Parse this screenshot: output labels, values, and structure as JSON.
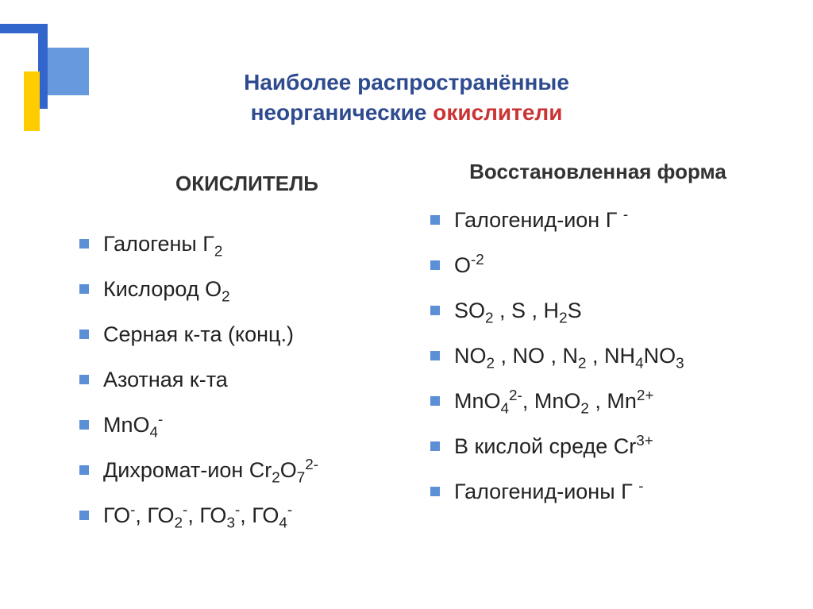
{
  "title": {
    "line1": "Наиболее распространённые",
    "line2_part1": "неорганические ",
    "line2_part2": "окислители",
    "color_main": "#2e4b8f",
    "color_highlight": "#cc3333"
  },
  "columns": {
    "left": {
      "header": "ОКИСЛИТЕЛЬ",
      "items": [
        {
          "html": "Галогены Г<sub>2</sub>"
        },
        {
          "html": "Кислород О<sub>2</sub>"
        },
        {
          "html": "Серная к-та (конц.)"
        },
        {
          "html": "Азотная к-та"
        },
        {
          "html": "MnO<sub>4</sub><sup>-</sup>"
        },
        {
          "html": "Дихромат-ион Cr<sub>2</sub>O<sub>7</sub><sup>2-</sup>"
        },
        {
          "html": "ГО<sup>-</sup>, ГО<sub>2</sub><sup>-</sup>, ГО<sub>3</sub><sup>-</sup>, ГО<sub>4</sub><sup>-</sup>"
        }
      ]
    },
    "right": {
      "header": "Восстановленная форма",
      "items": [
        {
          "html": "Галогенид-ион Г <sup>-</sup>"
        },
        {
          "html": "О<sup>-2</sup>"
        },
        {
          "html": "SO<sub>2</sub> , S , H<sub>2</sub>S"
        },
        {
          "html": "NO<sub>2</sub> , NO , N<sub>2</sub> , NH<sub>4</sub>NO<sub>3</sub>"
        },
        {
          "html": "MnO<sub>4</sub><sup>2-</sup>, MnO<sub>2</sub> , Mn<sup>2+</sup>"
        },
        {
          "html": "В кислой среде Cr<sup>3+</sup>"
        },
        {
          "html": "Галогенид-ионы Г <sup>-</sup>"
        }
      ]
    }
  },
  "style": {
    "bullet_color": "#5b8fd6",
    "body_fontsize": 27,
    "header_fontsize": 26,
    "title_fontsize": 28,
    "deco_colors": {
      "blue_dark": "#3366cc",
      "blue_light": "#6699dd",
      "yellow": "#ffcc00"
    },
    "background": "#ffffff"
  }
}
